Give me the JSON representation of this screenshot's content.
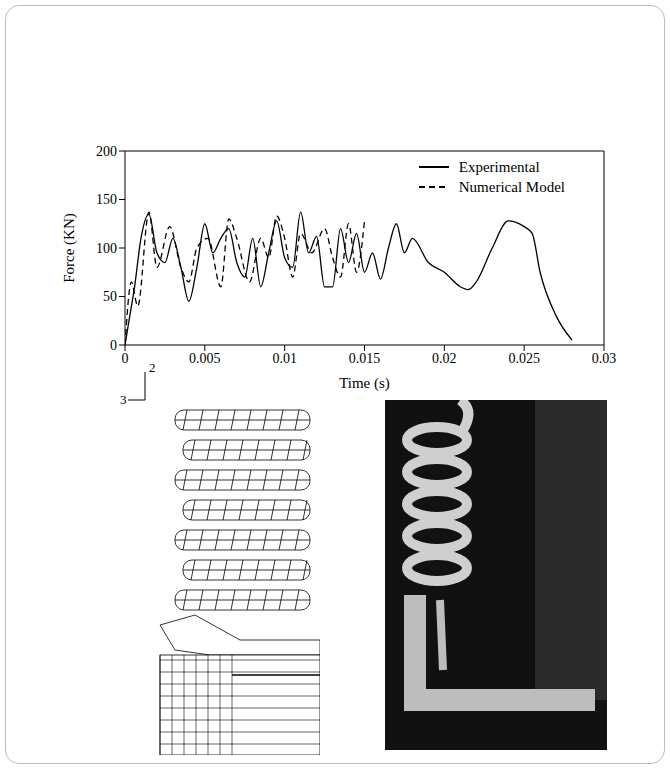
{
  "chart_data": {
    "type": "line",
    "x_label": "Time (s)",
    "y_label": "Force (KN)",
    "xlim": [
      0,
      0.03
    ],
    "xticks": [
      0,
      0.005,
      0.01,
      0.015,
      0.02,
      0.025,
      0.03
    ],
    "ylim": [
      0,
      200
    ],
    "yticks": [
      0,
      50,
      100,
      150,
      200
    ],
    "legend": "upper right",
    "series": [
      {
        "name": "Experimental",
        "color": "#000000",
        "line_style": "solid",
        "x": [
          0,
          0.0003,
          0.0006,
          0.001,
          0.0015,
          0.002,
          0.0025,
          0.003,
          0.0035,
          0.004,
          0.0045,
          0.005,
          0.0055,
          0.006,
          0.0065,
          0.007,
          0.0075,
          0.008,
          0.0085,
          0.009,
          0.0095,
          0.01,
          0.0105,
          0.011,
          0.0115,
          0.012,
          0.0125,
          0.013,
          0.0135,
          0.014,
          0.0145,
          0.015,
          0.0155,
          0.016,
          0.0165,
          0.017,
          0.0175,
          0.018,
          0.019,
          0.02,
          0.021,
          0.0215,
          0.022,
          0.023,
          0.024,
          0.025,
          0.0255,
          0.026,
          0.027,
          0.028
        ],
        "values": [
          0,
          30,
          60,
          110,
          135,
          95,
          85,
          110,
          80,
          45,
          80,
          125,
          95,
          110,
          120,
          85,
          70,
          110,
          60,
          95,
          128,
          90,
          80,
          137,
          95,
          112,
          60,
          60,
          120,
          85,
          115,
          75,
          95,
          68,
          100,
          125,
          95,
          110,
          85,
          75,
          60,
          57,
          65,
          100,
          128,
          122,
          115,
          75,
          30,
          5
        ]
      },
      {
        "name": "Numerical Model",
        "color": "#000000",
        "line_style": "dashed",
        "x": [
          0,
          0.0004,
          0.0008,
          0.0015,
          0.002,
          0.0028,
          0.0035,
          0.004,
          0.0045,
          0.0052,
          0.006,
          0.0065,
          0.007,
          0.0078,
          0.0085,
          0.009,
          0.0095,
          0.01,
          0.0105,
          0.011,
          0.0117,
          0.0125,
          0.013,
          0.0135,
          0.014,
          0.0145,
          0.015
        ],
        "values": [
          0,
          65,
          40,
          137,
          80,
          122,
          80,
          65,
          100,
          110,
          60,
          130,
          110,
          65,
          110,
          90,
          133,
          110,
          70,
          115,
          95,
          120,
          90,
          70,
          125,
          75,
          128
        ]
      }
    ]
  },
  "figure_axes": {
    "vertical": "2",
    "horizontal": "3"
  }
}
